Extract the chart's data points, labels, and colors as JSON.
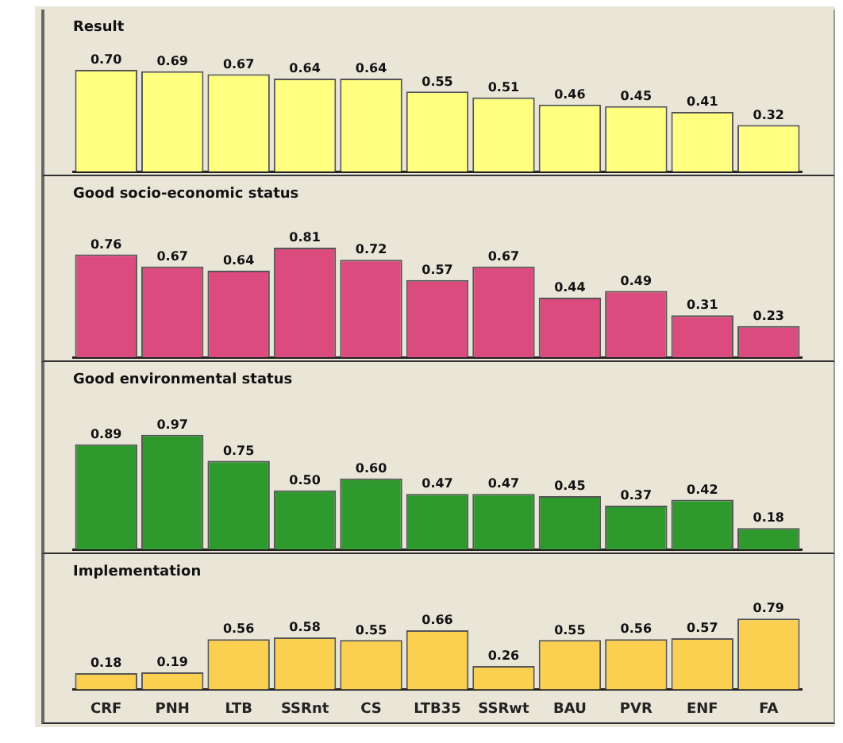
{
  "chart_data": [
    {
      "type": "bar",
      "title": "Result",
      "categories": [
        null,
        null,
        null,
        null,
        null,
        null,
        null,
        null,
        null,
        null,
        null
      ],
      "values": [
        0.7,
        0.69,
        0.67,
        0.64,
        0.64,
        0.55,
        0.51,
        0.46,
        0.45,
        0.41,
        0.32
      ],
      "value_labels": [
        "0.70",
        "0.69",
        "0.67",
        "0.64",
        "0.64",
        "0.55",
        "0.51",
        "0.46",
        "0.45",
        "0.41",
        "0.32"
      ],
      "color": "#ffff80",
      "tick_labels": false
    },
    {
      "type": "bar",
      "title": "Good socio-economic status",
      "categories": [
        null,
        null,
        null,
        null,
        null,
        null,
        null,
        null,
        null,
        null,
        null
      ],
      "values": [
        0.76,
        0.67,
        0.64,
        0.81,
        0.72,
        0.57,
        0.67,
        0.44,
        0.49,
        0.31,
        0.23
      ],
      "value_labels": [
        "0.76",
        "0.67",
        "0.64",
        "0.81",
        "0.72",
        "0.57",
        "0.67",
        "0.44",
        "0.49",
        "0.31",
        "0.23"
      ],
      "color": "#db4b7d",
      "tick_labels": false
    },
    {
      "type": "bar",
      "title": "Good environmental status",
      "categories": [
        null,
        null,
        null,
        null,
        null,
        null,
        null,
        null,
        null,
        null,
        null
      ],
      "values": [
        0.89,
        0.97,
        0.75,
        0.5,
        0.6,
        0.47,
        0.47,
        0.45,
        0.37,
        0.42,
        0.18
      ],
      "value_labels": [
        "0.89",
        "0.97",
        "0.75",
        "0.50",
        "0.60",
        "0.47",
        "0.47",
        "0.45",
        "0.37",
        "0.42",
        "0.18"
      ],
      "color": "#2e9a2e",
      "tick_labels": false
    },
    {
      "type": "bar",
      "title": "Implementation",
      "categories": [
        "CRF",
        "PNH",
        "LTB",
        "SSRnt",
        "CS",
        "LTB35",
        "SSRwt",
        "BAU",
        "PVR",
        "ENF",
        "FA"
      ],
      "values": [
        0.18,
        0.19,
        0.56,
        0.58,
        0.55,
        0.66,
        0.26,
        0.55,
        0.56,
        0.57,
        0.79
      ],
      "value_labels": [
        "0.18",
        "0.19",
        "0.56",
        "0.58",
        "0.55",
        "0.66",
        "0.26",
        "0.55",
        "0.56",
        "0.57",
        "0.79"
      ],
      "color": "#fbcf4f",
      "tick_labels": "x"
    }
  ]
}
